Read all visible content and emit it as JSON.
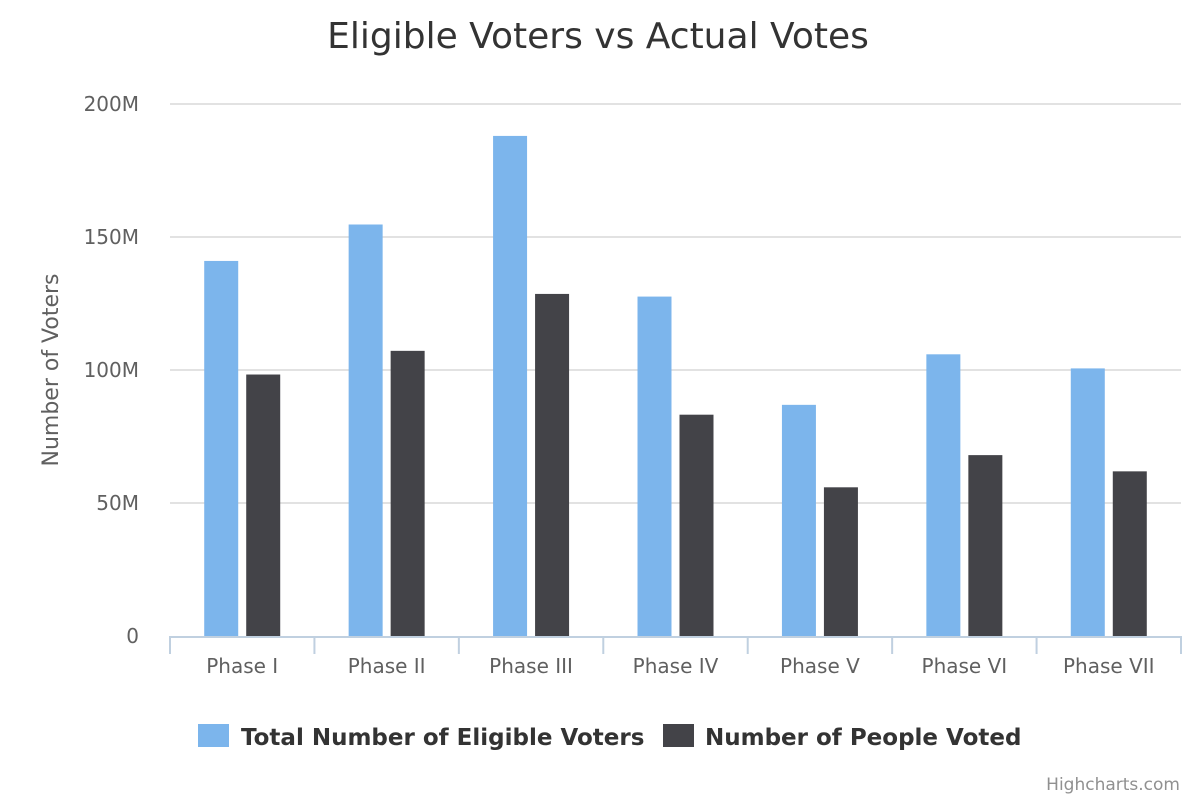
{
  "chart_data": {
    "type": "bar",
    "title": "Eligible Voters vs Actual Votes",
    "ylabel": "Number of Voters",
    "xlabel": "",
    "ylim": [
      0,
      200000000
    ],
    "yticks": [
      {
        "value": 0,
        "label": "0"
      },
      {
        "value": 50000000,
        "label": "50M"
      },
      {
        "value": 100000000,
        "label": "100M"
      },
      {
        "value": 150000000,
        "label": "150M"
      },
      {
        "value": 200000000,
        "label": "200M"
      }
    ],
    "categories": [
      "Phase I",
      "Phase II",
      "Phase III",
      "Phase IV",
      "Phase V",
      "Phase VI",
      "Phase VII"
    ],
    "series": [
      {
        "name": "Total Number of Eligible Voters",
        "color": "#7cb5ec",
        "values": [
          141000000,
          154700000,
          188000000,
          127600000,
          86900000,
          105900000,
          100600000
        ]
      },
      {
        "name": "Number of People Voted",
        "color": "#434348",
        "values": [
          98300000,
          107200000,
          128600000,
          83200000,
          55900000,
          68000000,
          61900000
        ]
      }
    ],
    "grid": true,
    "legend": "bottom-center"
  },
  "credits": "Highcharts.com"
}
